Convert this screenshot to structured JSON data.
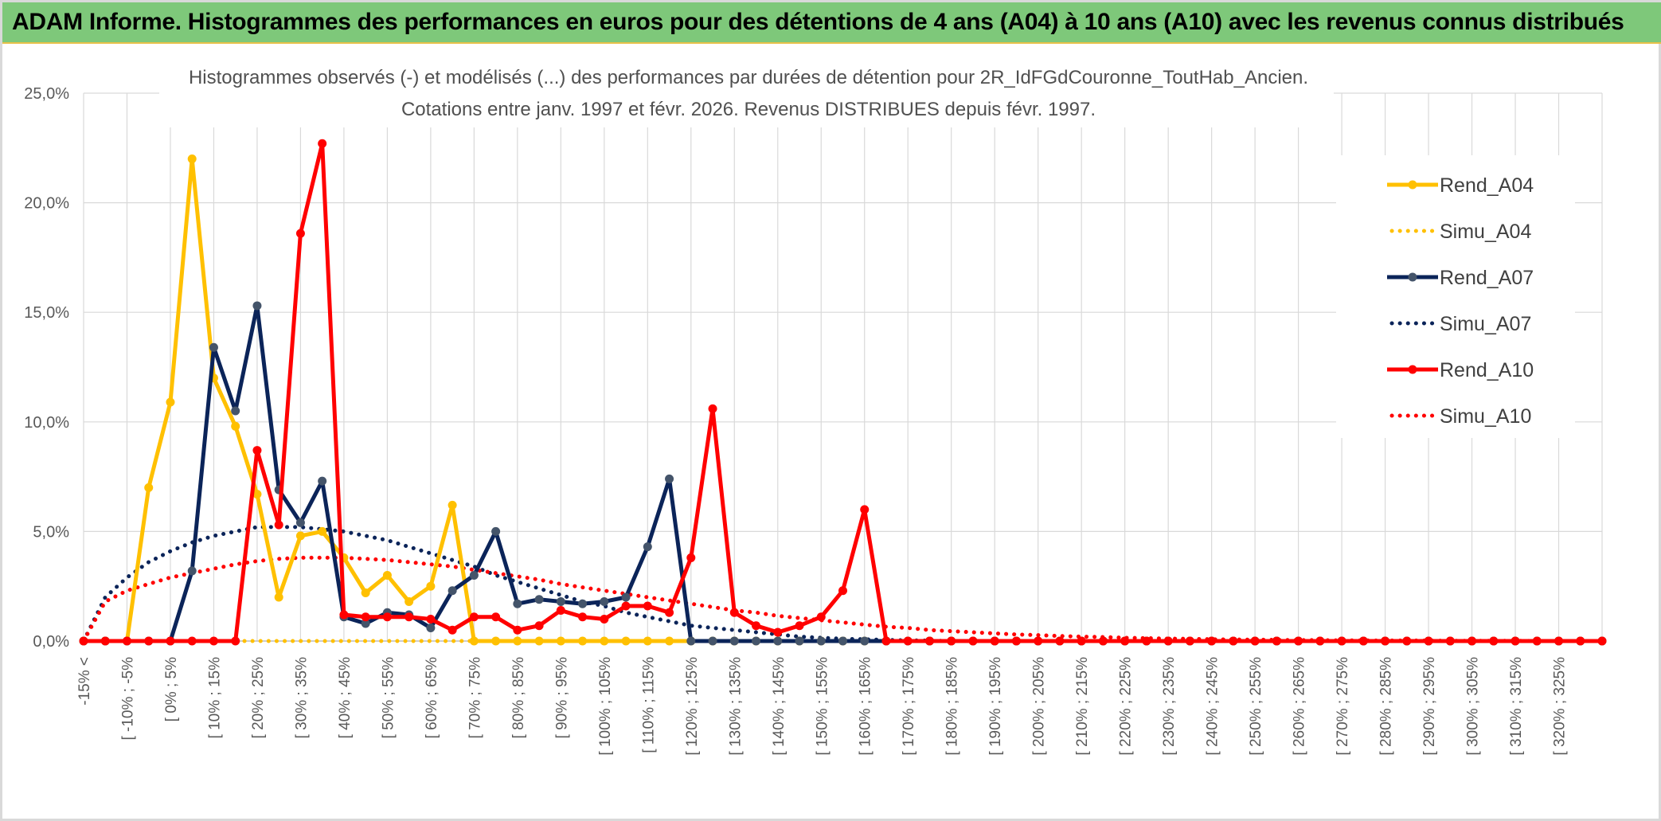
{
  "banner": {
    "title": "ADAM Informe. Histogrammes des performances en euros pour des détentions de 4 ans (A04) à 10 ans (A10) avec les revenus connus distribués"
  },
  "chart_data": {
    "type": "line",
    "title_line1": "Histogrammes observés (-) et modélisés (...) des performances par durées de détention pour 2R_IdFGdCouronne_ToutHab_Ancien.",
    "title_line2": "Cotations entre janv. 1997 et févr. 2026. Revenus DISTRIBUES depuis févr. 1997.",
    "xlabel": "",
    "ylabel": "",
    "ylim": [
      0,
      25
    ],
    "y_ticks": [
      "0,0%",
      "5,0%",
      "10,0%",
      "15,0%",
      "20,0%",
      "25,0%"
    ],
    "grid": true,
    "legend_position": "right",
    "x_tick_labels": [
      "-15% <",
      "[ -10% ; -5%",
      "[ 0% ; 5%",
      "[ 10% ; 15%",
      "[ 20% ; 25%",
      "[ 30% ; 35%",
      "[ 40% ; 45%",
      "[ 50% ; 55%",
      "[ 60% ; 65%",
      "[ 70% ; 75%",
      "[ 80% ; 85%",
      "[ 90% ; 95%",
      "[ 100% ; 105%",
      "[ 110% ; 115%",
      "[ 120% ; 125%",
      "[ 130% ; 135%",
      "[ 140% ; 145%",
      "[ 150% ; 155%",
      "[ 160% ; 165%",
      "[ 170% ; 175%",
      "[ 180% ; 185%",
      "[ 190% ; 195%",
      "[ 200% ; 205%",
      "[ 210% ; 215%",
      "[ 220% ; 225%",
      "[ 230% ; 235%",
      "[ 240% ; 245%",
      "[ 250% ; 255%",
      "[ 260% ; 265%",
      "[ 270% ; 275%",
      "[ 280% ; 285%",
      "[ 290% ; 295%",
      "[ 300% ; 305%",
      "[ 310% ; 315%",
      "[ 320% ; 325%"
    ],
    "series": [
      {
        "name": "Rend_A04",
        "color": "#ffc000",
        "style": "solid",
        "values": [
          0,
          0,
          0,
          7.0,
          10.9,
          22.0,
          12.0,
          9.8,
          6.7,
          2.0,
          4.8,
          5.0,
          3.8,
          2.2,
          3.0,
          1.8,
          2.5,
          6.2,
          0,
          0,
          0,
          0,
          0,
          0,
          0,
          0,
          0,
          0,
          0,
          0,
          0
        ]
      },
      {
        "name": "Simu_A04",
        "color": "#ffc000",
        "style": "dotted",
        "values": [
          0,
          0,
          0,
          0,
          0,
          0,
          0,
          0,
          0,
          0,
          0,
          0,
          0,
          0,
          0,
          0,
          0,
          0,
          0,
          0,
          0,
          0,
          0,
          0,
          0,
          0,
          0,
          0,
          0,
          0,
          0
        ]
      },
      {
        "name": "Rend_A07",
        "color": "#0b2459",
        "style": "solid",
        "values": [
          0,
          0,
          0,
          0,
          0,
          3.2,
          13.4,
          10.5,
          15.3,
          6.9,
          5.4,
          7.3,
          1.1,
          0.8,
          1.3,
          1.2,
          0.6,
          2.3,
          3.0,
          5.0,
          1.7,
          1.9,
          1.8,
          1.7,
          1.8,
          2.0,
          4.3,
          7.4,
          0,
          0,
          0,
          0,
          0,
          0,
          0,
          0,
          0,
          0,
          0
        ]
      },
      {
        "name": "Simu_A07",
        "color": "#0b2459",
        "style": "dotted",
        "values": [
          0,
          2.0,
          2.9,
          3.6,
          4.1,
          4.5,
          4.8,
          5.0,
          5.2,
          5.2,
          5.2,
          5.1,
          5.0,
          4.8,
          4.6,
          4.3,
          4.0,
          3.7,
          3.4,
          3.0,
          2.7,
          2.4,
          2.1,
          1.8,
          1.6,
          1.3,
          1.1,
          0.9,
          0.7,
          0.6,
          0.5,
          0.4,
          0.3,
          0.2,
          0.15,
          0.1,
          0.08,
          0.05,
          0.03,
          0.02,
          0,
          0,
          0,
          0,
          0,
          0,
          0,
          0,
          0,
          0,
          0,
          0,
          0,
          0,
          0,
          0,
          0,
          0,
          0,
          0,
          0,
          0,
          0,
          0,
          0,
          0,
          0,
          0,
          0,
          0
        ]
      },
      {
        "name": "Rend_A10",
        "color": "#ff0000",
        "style": "solid",
        "values": [
          0,
          0,
          0,
          0,
          0,
          0,
          0,
          0,
          8.7,
          5.3,
          18.6,
          22.7,
          1.2,
          1.1,
          1.1,
          1.1,
          1.0,
          0.5,
          1.1,
          1.1,
          0.5,
          0.7,
          1.4,
          1.1,
          1.0,
          1.6,
          1.6,
          1.3,
          3.8,
          10.6,
          1.3,
          0.7,
          0.4,
          0.7,
          1.1,
          2.3,
          6.0,
          0,
          0,
          0,
          0,
          0,
          0,
          0,
          0,
          0,
          0,
          0,
          0,
          0,
          0,
          0,
          0,
          0,
          0,
          0,
          0,
          0,
          0,
          0,
          0,
          0,
          0,
          0,
          0,
          0,
          0,
          0,
          0,
          0,
          0
        ]
      },
      {
        "name": "Simu_A10",
        "color": "#ff0000",
        "style": "dotted",
        "values": [
          0,
          1.8,
          2.3,
          2.6,
          2.9,
          3.1,
          3.3,
          3.5,
          3.65,
          3.75,
          3.8,
          3.8,
          3.8,
          3.75,
          3.7,
          3.6,
          3.5,
          3.4,
          3.25,
          3.1,
          2.95,
          2.8,
          2.6,
          2.45,
          2.3,
          2.15,
          2.0,
          1.85,
          1.7,
          1.55,
          1.4,
          1.3,
          1.15,
          1.05,
          0.95,
          0.85,
          0.75,
          0.65,
          0.6,
          0.5,
          0.45,
          0.4,
          0.35,
          0.3,
          0.27,
          0.23,
          0.2,
          0.18,
          0.15,
          0.13,
          0.11,
          0.1,
          0.08,
          0.07,
          0.06,
          0.05,
          0.04,
          0.04,
          0.03,
          0.03,
          0.02,
          0.02,
          0.02,
          0.01,
          0.01,
          0.01,
          0.01,
          0,
          0,
          0,
          0
        ]
      }
    ]
  }
}
